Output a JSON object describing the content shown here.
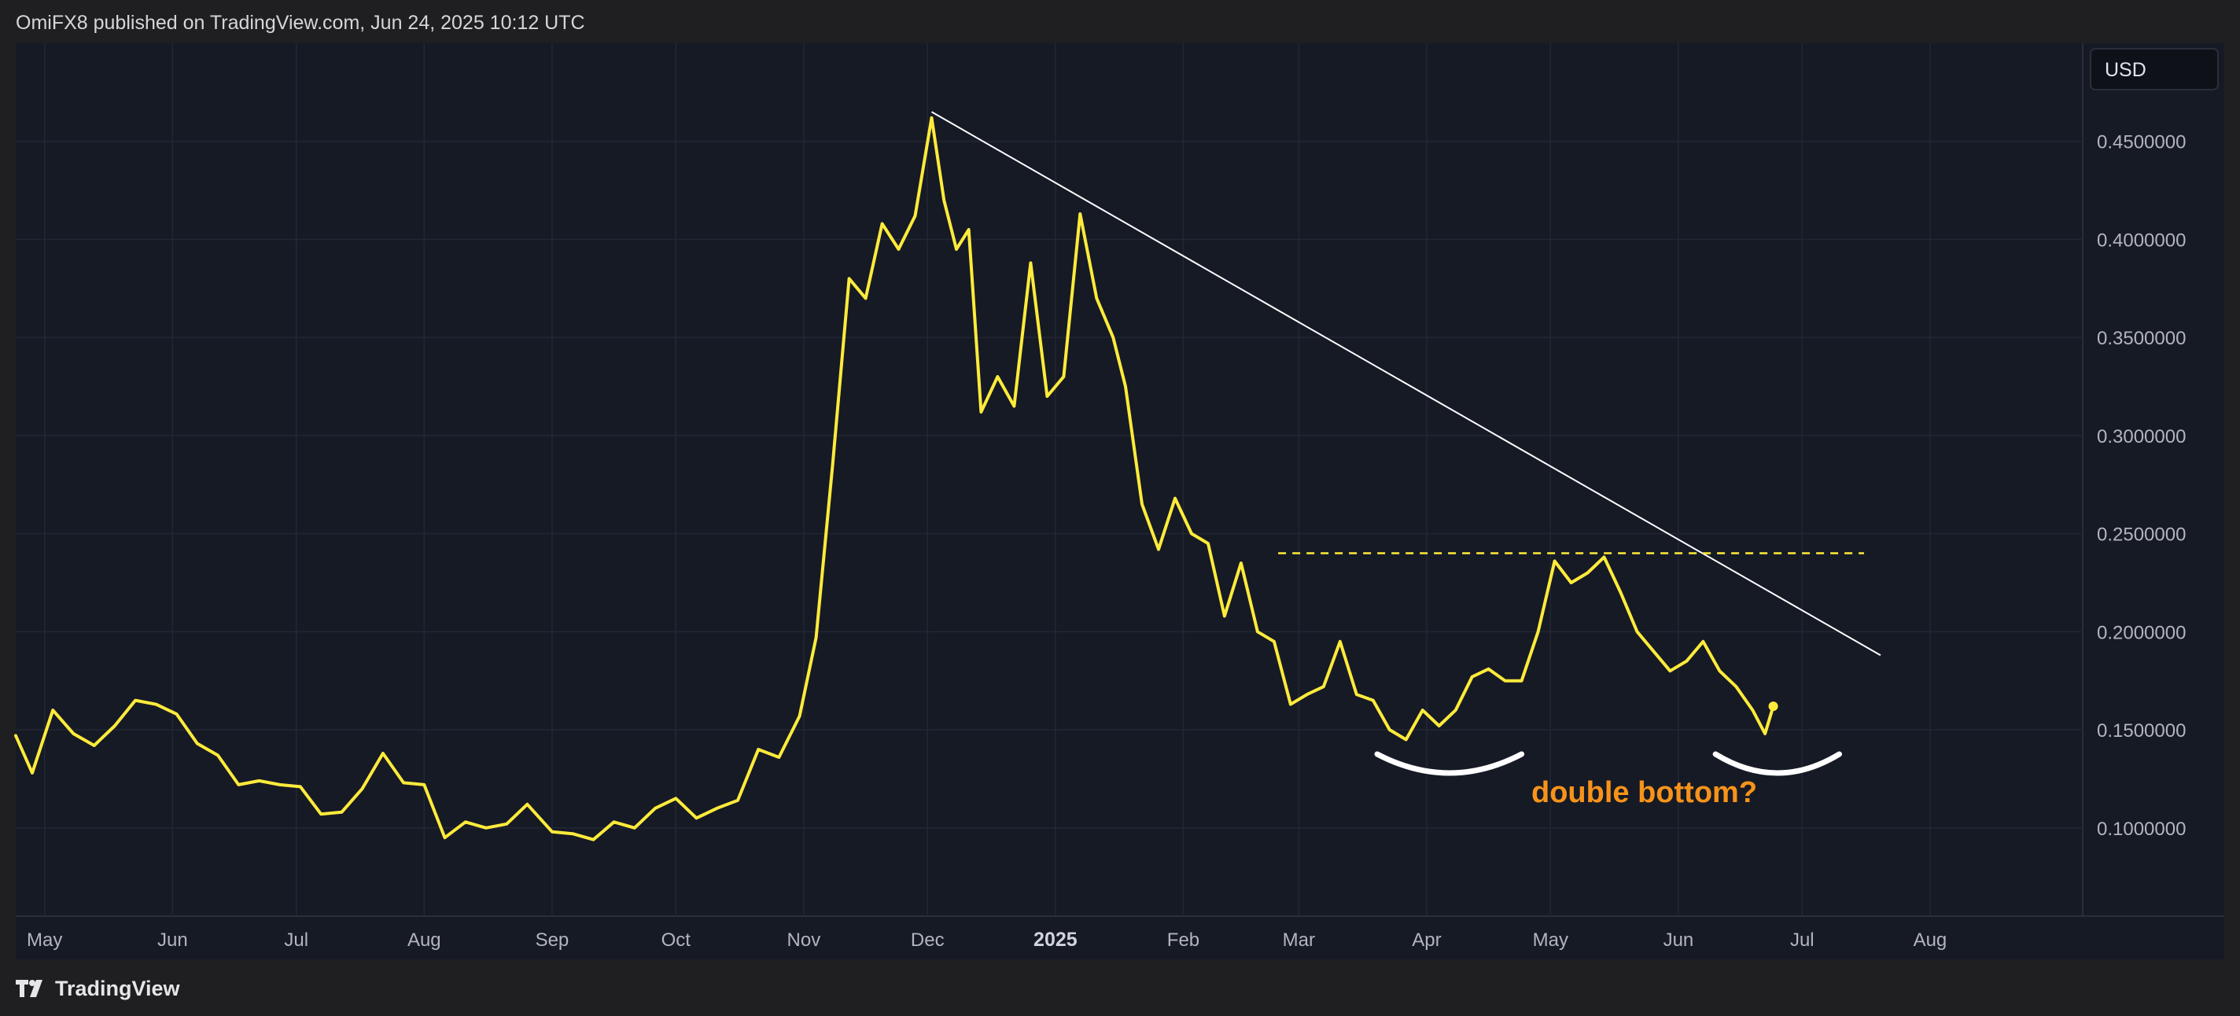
{
  "header": {
    "publisher_text": "OmiFX8 published on TradingView.com, Jun 24, 2025 10:12 UTC"
  },
  "footer": {
    "brand_label": "TradingView",
    "brand_icon": "tradingview-logo-icon"
  },
  "currency_badge": "USD",
  "colors": {
    "background": "#161a25",
    "price_line": "#ffeb3b",
    "trendline": "#ffffff",
    "annotation": "#f7931a",
    "grid": "#232734"
  },
  "chart_data": {
    "type": "line",
    "title": "",
    "xlabel": "",
    "ylabel": "",
    "ylim": [
      0.055,
      0.5
    ],
    "y_ticks": [
      "0.4500000",
      "0.4000000",
      "0.3500000",
      "0.3000000",
      "0.2500000",
      "0.2000000",
      "0.1500000",
      "0.1000000"
    ],
    "y_tick_values": [
      0.45,
      0.4,
      0.35,
      0.3,
      0.25,
      0.2,
      0.15,
      0.1
    ],
    "x_range": [
      "2024-04-24",
      "2025-09-07"
    ],
    "x_ticks": [
      {
        "label": "May",
        "date": "2024-05-01",
        "bold": false
      },
      {
        "label": "Jun",
        "date": "2024-06-01",
        "bold": false
      },
      {
        "label": "Jul",
        "date": "2024-07-01",
        "bold": false
      },
      {
        "label": "Aug",
        "date": "2024-08-01",
        "bold": false
      },
      {
        "label": "Sep",
        "date": "2024-09-01",
        "bold": false
      },
      {
        "label": "Oct",
        "date": "2024-10-01",
        "bold": false
      },
      {
        "label": "Nov",
        "date": "2024-11-01",
        "bold": false
      },
      {
        "label": "Dec",
        "date": "2024-12-01",
        "bold": false
      },
      {
        "label": "2025",
        "date": "2025-01-01",
        "bold": true
      },
      {
        "label": "Feb",
        "date": "2025-02-01",
        "bold": false
      },
      {
        "label": "Mar",
        "date": "2025-03-01",
        "bold": false
      },
      {
        "label": "Apr",
        "date": "2025-04-01",
        "bold": false
      },
      {
        "label": "May",
        "date": "2025-05-01",
        "bold": false
      },
      {
        "label": "Jun",
        "date": "2025-06-01",
        "bold": false
      },
      {
        "label": "Jul",
        "date": "2025-07-01",
        "bold": false
      },
      {
        "label": "Aug",
        "date": "2025-08-01",
        "bold": false
      }
    ],
    "grid": true,
    "series": [
      {
        "x": [
          "2024-04-24",
          "2024-04-28",
          "2024-05-03",
          "2024-05-08",
          "2024-05-13",
          "2024-05-18",
          "2024-05-23",
          "2024-05-28",
          "2024-06-02",
          "2024-06-07",
          "2024-06-12",
          "2024-06-17",
          "2024-06-22",
          "2024-06-27",
          "2024-07-02",
          "2024-07-07",
          "2024-07-12",
          "2024-07-17",
          "2024-07-22",
          "2024-07-27",
          "2024-08-01",
          "2024-08-06",
          "2024-08-11",
          "2024-08-16",
          "2024-08-21",
          "2024-08-26",
          "2024-09-01",
          "2024-09-06",
          "2024-09-11",
          "2024-09-16",
          "2024-09-21",
          "2024-09-26",
          "2024-10-01",
          "2024-10-06",
          "2024-10-11",
          "2024-10-16",
          "2024-10-21",
          "2024-10-26",
          "2024-10-31",
          "2024-11-04",
          "2024-11-08",
          "2024-11-12",
          "2024-11-16",
          "2024-11-20",
          "2024-11-24",
          "2024-11-28",
          "2024-12-02",
          "2024-12-05",
          "2024-12-08",
          "2024-12-11",
          "2024-12-14",
          "2024-12-18",
          "2024-12-22",
          "2024-12-26",
          "2024-12-30",
          "2025-01-03",
          "2025-01-07",
          "2025-01-11",
          "2025-01-15",
          "2025-01-18",
          "2025-01-22",
          "2025-01-26",
          "2025-01-30",
          "2025-02-03",
          "2025-02-07",
          "2025-02-11",
          "2025-02-15",
          "2025-02-19",
          "2025-02-23",
          "2025-02-27",
          "2025-03-03",
          "2025-03-07",
          "2025-03-11",
          "2025-03-15",
          "2025-03-19",
          "2025-03-23",
          "2025-03-27",
          "2025-03-31",
          "2025-04-04",
          "2025-04-08",
          "2025-04-12",
          "2025-04-16",
          "2025-04-20",
          "2025-04-24",
          "2025-04-28",
          "2025-05-02",
          "2025-05-06",
          "2025-05-10",
          "2025-05-14",
          "2025-05-18",
          "2025-05-22",
          "2025-05-26",
          "2025-05-30",
          "2025-06-03",
          "2025-06-07",
          "2025-06-11",
          "2025-06-15",
          "2025-06-19",
          "2025-06-22",
          "2025-06-24"
        ],
        "y": [
          0.147,
          0.128,
          0.16,
          0.148,
          0.142,
          0.152,
          0.165,
          0.163,
          0.158,
          0.143,
          0.137,
          0.122,
          0.124,
          0.122,
          0.121,
          0.107,
          0.108,
          0.12,
          0.138,
          0.123,
          0.122,
          0.095,
          0.103,
          0.1,
          0.102,
          0.112,
          0.098,
          0.097,
          0.094,
          0.103,
          0.1,
          0.11,
          0.115,
          0.105,
          0.11,
          0.114,
          0.14,
          0.136,
          0.157,
          0.197,
          0.285,
          0.38,
          0.37,
          0.408,
          0.395,
          0.412,
          0.462,
          0.42,
          0.395,
          0.405,
          0.312,
          0.33,
          0.315,
          0.388,
          0.32,
          0.33,
          0.413,
          0.37,
          0.35,
          0.325,
          0.265,
          0.242,
          0.268,
          0.25,
          0.245,
          0.208,
          0.235,
          0.2,
          0.195,
          0.163,
          0.168,
          0.172,
          0.195,
          0.168,
          0.165,
          0.15,
          0.145,
          0.16,
          0.152,
          0.16,
          0.177,
          0.181,
          0.175,
          0.175,
          0.2,
          0.236,
          0.225,
          0.23,
          0.238,
          0.22,
          0.2,
          0.19,
          0.18,
          0.185,
          0.195,
          0.18,
          0.172,
          0.16,
          0.148,
          0.162
        ]
      }
    ],
    "annotations": {
      "label": "double bottom?",
      "resistance_level": 0.24,
      "resistance_from": "2025-02-24",
      "resistance_to": "2025-07-16",
      "trendline_from": {
        "x": "2024-12-02",
        "y": 0.465
      },
      "trendline_to": {
        "x": "2025-07-20",
        "y": 0.188
      },
      "bottom_arcs": [
        {
          "from": "2025-03-20",
          "to": "2025-04-24"
        },
        {
          "from": "2025-06-10",
          "to": "2025-07-10"
        }
      ]
    }
  }
}
